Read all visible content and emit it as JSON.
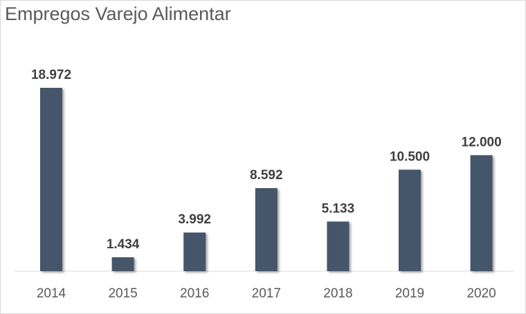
{
  "chart_data": {
    "type": "bar",
    "title": "Empregos Varejo Alimentar",
    "categories": [
      "2014",
      "2015",
      "2016",
      "2017",
      "2018",
      "2019",
      "2020"
    ],
    "values": [
      18972,
      1434,
      3992,
      8592,
      5133,
      10500,
      12000
    ],
    "value_labels": [
      "18.972",
      "1.434",
      "3.992",
      "8.592",
      "5.133",
      "10.500",
      "12.000"
    ],
    "xlabel": "",
    "ylabel": "",
    "ylim": [
      0,
      19000
    ],
    "grid": false,
    "legend": "none",
    "bar_color": "#44546a"
  }
}
